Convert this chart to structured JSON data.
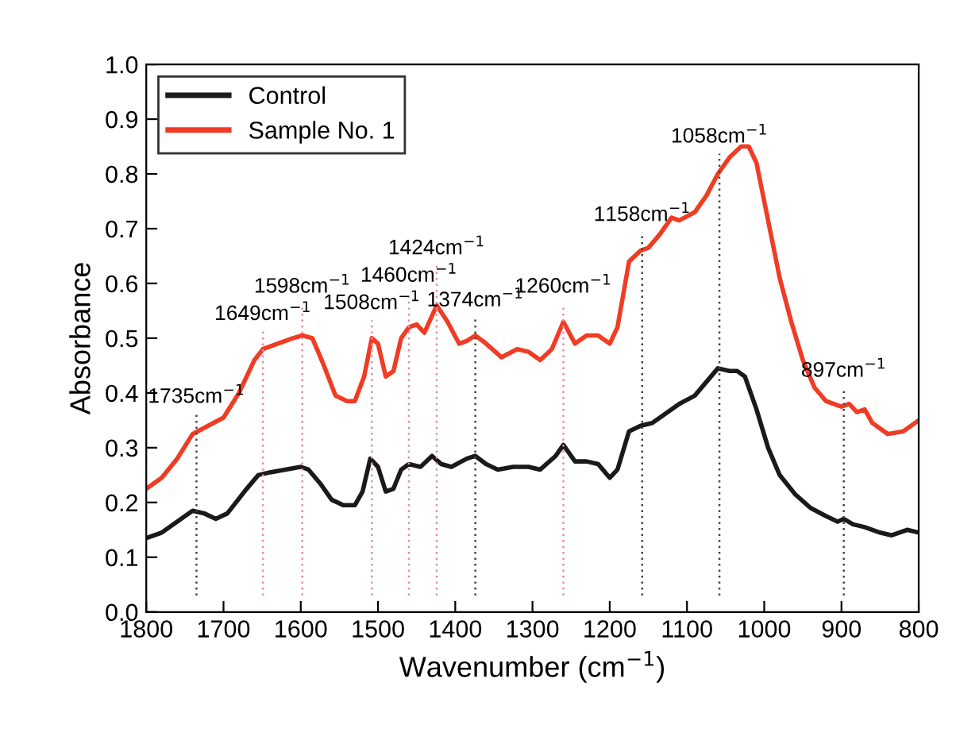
{
  "chart_data": {
    "type": "line",
    "xlabel": "Wavenumber (cm$^{−1}$)",
    "ylabel": "Absorbance",
    "xlim": [
      1800,
      800
    ],
    "xticks": [
      1800,
      1700,
      1600,
      1500,
      1400,
      1300,
      1200,
      1100,
      1000,
      900,
      800
    ],
    "ylim": [
      0,
      1
    ],
    "yticks": [
      {
        "value": 0,
        "label": "0.0"
      },
      {
        "value": 0.1,
        "label": "0.1"
      },
      {
        "value": 0.2,
        "label": "0.2"
      },
      {
        "value": 0.3,
        "label": "0.3"
      },
      {
        "value": 0.4,
        "label": "0.4"
      },
      {
        "value": 0.5,
        "label": "0.5"
      },
      {
        "value": 0.6,
        "label": "0.6"
      },
      {
        "value": 0.7,
        "label": "0.7"
      },
      {
        "value": 0.8,
        "label": "0.8"
      },
      {
        "value": 0.9,
        "label": "0.9"
      },
      {
        "value": 1,
        "label": "1.0"
      }
    ],
    "legend": "top left",
    "grid": false,
    "marker": "none",
    "line_style": "solid",
    "series": [
      {
        "name": "Control",
        "color": "#1a1a1a",
        "x": [
          1800,
          1780,
          1760,
          1740,
          1725,
          1710,
          1695,
          1670,
          1655,
          1640,
          1620,
          1600,
          1590,
          1575,
          1560,
          1545,
          1530,
          1520,
          1510,
          1500,
          1490,
          1480,
          1470,
          1460,
          1445,
          1430,
          1418,
          1405,
          1385,
          1374,
          1360,
          1345,
          1325,
          1305,
          1290,
          1270,
          1260,
          1245,
          1230,
          1215,
          1200,
          1190,
          1175,
          1160,
          1145,
          1130,
          1110,
          1090,
          1075,
          1060,
          1045,
          1035,
          1025,
          1010,
          995,
          980,
          960,
          940,
          920,
          905,
          897,
          885,
          870,
          850,
          835,
          815,
          800
        ],
        "values": [
          0.135,
          0.145,
          0.165,
          0.185,
          0.18,
          0.17,
          0.18,
          0.225,
          0.25,
          0.255,
          0.26,
          0.265,
          0.26,
          0.235,
          0.205,
          0.195,
          0.195,
          0.22,
          0.28,
          0.265,
          0.22,
          0.225,
          0.26,
          0.27,
          0.265,
          0.285,
          0.27,
          0.265,
          0.28,
          0.285,
          0.27,
          0.26,
          0.265,
          0.265,
          0.26,
          0.285,
          0.305,
          0.275,
          0.275,
          0.27,
          0.245,
          0.26,
          0.33,
          0.34,
          0.345,
          0.36,
          0.38,
          0.395,
          0.42,
          0.445,
          0.44,
          0.44,
          0.43,
          0.37,
          0.3,
          0.25,
          0.215,
          0.19,
          0.175,
          0.165,
          0.17,
          0.16,
          0.155,
          0.145,
          0.14,
          0.15,
          0.145
        ]
      },
      {
        "name": "Sample No. 1",
        "color": "#f03c24",
        "x": [
          1800,
          1780,
          1760,
          1740,
          1720,
          1700,
          1680,
          1660,
          1649,
          1630,
          1610,
          1598,
          1585,
          1570,
          1555,
          1540,
          1530,
          1518,
          1508,
          1500,
          1490,
          1480,
          1470,
          1460,
          1450,
          1440,
          1424,
          1410,
          1395,
          1385,
          1374,
          1360,
          1340,
          1320,
          1305,
          1290,
          1275,
          1260,
          1245,
          1230,
          1215,
          1200,
          1190,
          1175,
          1160,
          1150,
          1135,
          1120,
          1110,
          1090,
          1075,
          1060,
          1045,
          1030,
          1020,
          1010,
          1000,
          990,
          980,
          965,
          950,
          935,
          920,
          900,
          890,
          880,
          870,
          860,
          840,
          820,
          800
        ],
        "values": [
          0.225,
          0.245,
          0.28,
          0.325,
          0.34,
          0.355,
          0.4,
          0.46,
          0.48,
          0.49,
          0.5,
          0.505,
          0.5,
          0.45,
          0.395,
          0.385,
          0.385,
          0.43,
          0.5,
          0.49,
          0.43,
          0.44,
          0.5,
          0.52,
          0.525,
          0.51,
          0.56,
          0.53,
          0.49,
          0.495,
          0.505,
          0.49,
          0.465,
          0.48,
          0.475,
          0.46,
          0.48,
          0.53,
          0.49,
          0.505,
          0.505,
          0.49,
          0.52,
          0.64,
          0.66,
          0.665,
          0.69,
          0.72,
          0.715,
          0.73,
          0.76,
          0.8,
          0.83,
          0.85,
          0.85,
          0.82,
          0.75,
          0.68,
          0.61,
          0.53,
          0.46,
          0.41,
          0.385,
          0.375,
          0.38,
          0.365,
          0.37,
          0.345,
          0.325,
          0.33,
          0.35
        ]
      }
    ],
    "ref_lines": [
      {
        "axis": "x",
        "value": 1735,
        "label": "1735cm$^{−1}$",
        "color": "#444444",
        "line_style": "dotted"
      },
      {
        "axis": "x",
        "value": 1649,
        "label": "1649cm$^{−1}$",
        "color": "#e58ab0",
        "line_style": "dotted"
      },
      {
        "axis": "x",
        "value": 1598,
        "label": "1598cm$^{−1}$",
        "color": "#e58ab0",
        "line_style": "dotted"
      },
      {
        "axis": "x",
        "value": 1508,
        "label": "1508cm$^{−1}$",
        "color": "#e58ab0",
        "line_style": "dotted"
      },
      {
        "axis": "x",
        "value": 1460,
        "label": "1460cm$^{−1}$",
        "color": "#e58ab0",
        "line_style": "dotted"
      },
      {
        "axis": "x",
        "value": 1424,
        "label": "1424cm$^{−1}$",
        "color": "#e58ab0",
        "line_style": "dotted"
      },
      {
        "axis": "x",
        "value": 1374,
        "label": "1374cm$^{−1}$",
        "color": "#444444",
        "line_style": "dotted"
      },
      {
        "axis": "x",
        "value": 1260,
        "label": "1260cm$^{−1}$",
        "color": "#e58ab0",
        "line_style": "dotted"
      },
      {
        "axis": "x",
        "value": 1158,
        "label": "1158cm$^{−1}$",
        "color": "#444444",
        "line_style": "dotted"
      },
      {
        "axis": "x",
        "value": 1058,
        "label": "1058cm$^{−1}$",
        "color": "#444444",
        "line_style": "dotted"
      },
      {
        "axis": "x",
        "value": 897,
        "label": "897cm$^{−1}$",
        "color": "#444444",
        "line_style": "dotted"
      }
    ]
  }
}
